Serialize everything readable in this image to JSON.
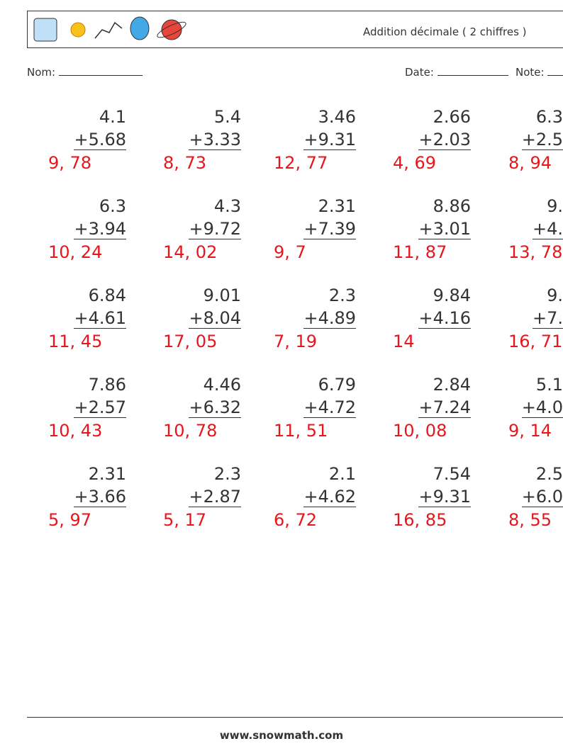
{
  "header": {
    "title": "Addition décimale ( 2 chiffres )",
    "name_label": "Nom:",
    "date_label": "Date:",
    "note_label": "Note:"
  },
  "problems": [
    [
      {
        "top": "4.1",
        "bottom": "+5.68",
        "answer": "9, 78"
      },
      {
        "top": "5.4",
        "bottom": "+3.33",
        "answer": "8, 73"
      },
      {
        "top": "3.46",
        "bottom": "+9.31",
        "answer": "12, 77"
      },
      {
        "top": "2.66",
        "bottom": "+2.03",
        "answer": "4, 69"
      },
      {
        "top": "6.3",
        "bottom": "+2.5",
        "answer": "8, 94"
      }
    ],
    [
      {
        "top": "6.3",
        "bottom": "+3.94",
        "answer": "10, 24"
      },
      {
        "top": "4.3",
        "bottom": "+9.72",
        "answer": "14, 02"
      },
      {
        "top": "2.31",
        "bottom": "+7.39",
        "answer": "9, 7"
      },
      {
        "top": "8.86",
        "bottom": "+3.01",
        "answer": "11, 87"
      },
      {
        "top": "9.",
        "bottom": "+4.",
        "answer": "13, 78"
      }
    ],
    [
      {
        "top": "6.84",
        "bottom": "+4.61",
        "answer": "11, 45"
      },
      {
        "top": "9.01",
        "bottom": "+8.04",
        "answer": "17, 05"
      },
      {
        "top": "2.3",
        "bottom": "+4.89",
        "answer": "7, 19"
      },
      {
        "top": "9.84",
        "bottom": "+4.16",
        "answer": "14"
      },
      {
        "top": "9.",
        "bottom": "+7.",
        "answer": "16, 71"
      }
    ],
    [
      {
        "top": "7.86",
        "bottom": "+2.57",
        "answer": "10, 43"
      },
      {
        "top": "4.46",
        "bottom": "+6.32",
        "answer": "10, 78"
      },
      {
        "top": "6.79",
        "bottom": "+4.72",
        "answer": "11, 51"
      },
      {
        "top": "2.84",
        "bottom": "+7.24",
        "answer": "10, 08"
      },
      {
        "top": "5.1",
        "bottom": "+4.0",
        "answer": "9, 14"
      }
    ],
    [
      {
        "top": "2.31",
        "bottom": "+3.66",
        "answer": "5, 97"
      },
      {
        "top": "2.3",
        "bottom": "+2.87",
        "answer": "5, 17"
      },
      {
        "top": "2.1",
        "bottom": "+4.62",
        "answer": "6, 72"
      },
      {
        "top": "7.54",
        "bottom": "+9.31",
        "answer": "16, 85"
      },
      {
        "top": "2.5",
        "bottom": "+6.0",
        "answer": "8, 55"
      }
    ]
  ],
  "footer": {
    "url": "www.snowmath.com"
  }
}
